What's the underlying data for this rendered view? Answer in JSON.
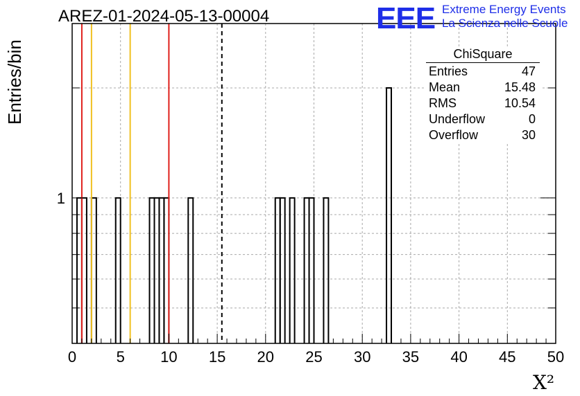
{
  "title": "AREZ-01-2024-05-13-00004",
  "logo": {
    "text": "EEE",
    "line1": "Extreme Energy Events",
    "line2": "La Scienza nelle Scuole",
    "color": "#1e2ee8"
  },
  "stats": {
    "title": "ChiSquare",
    "rows": [
      {
        "label": "Entries",
        "value": "47"
      },
      {
        "label": "Mean",
        "value": "15.48"
      },
      {
        "label": "RMS",
        "value": "10.54"
      },
      {
        "label": "Underflow",
        "value": "0"
      },
      {
        "label": "Overflow",
        "value": "30"
      }
    ]
  },
  "chart_data": {
    "type": "histogram",
    "title": "AREZ-01-2024-05-13-00004",
    "xlabel": "X²",
    "ylabel": "Entries/bin",
    "xlim": [
      0,
      50
    ],
    "ylim_log": [
      0.4,
      3
    ],
    "yscale": "log",
    "grid": true,
    "x_ticks": [
      "0",
      "5",
      "10",
      "15",
      "20",
      "25",
      "30",
      "35",
      "40",
      "45",
      "50"
    ],
    "y_tick_labels": [
      "1"
    ],
    "bin_width": 0.5,
    "bins": [
      {
        "x": 0.5,
        "count": 1
      },
      {
        "x": 1.0,
        "count": 1
      },
      {
        "x": 2.0,
        "count": 1
      },
      {
        "x": 4.5,
        "count": 1
      },
      {
        "x": 8.0,
        "count": 1
      },
      {
        "x": 8.5,
        "count": 1
      },
      {
        "x": 9.0,
        "count": 1
      },
      {
        "x": 9.5,
        "count": 1
      },
      {
        "x": 12.0,
        "count": 1
      },
      {
        "x": 21.0,
        "count": 1
      },
      {
        "x": 21.5,
        "count": 1
      },
      {
        "x": 22.5,
        "count": 1
      },
      {
        "x": 24.0,
        "count": 1
      },
      {
        "x": 24.5,
        "count": 1
      },
      {
        "x": 26.0,
        "count": 1
      },
      {
        "x": 32.5,
        "count": 2
      }
    ],
    "reference_lines": [
      {
        "x": 1.0,
        "color": "#e0201c",
        "style": "solid"
      },
      {
        "x": 2.0,
        "color": "#f0c020",
        "style": "solid"
      },
      {
        "x": 6.0,
        "color": "#f0c020",
        "style": "solid"
      },
      {
        "x": 10.0,
        "color": "#e0201c",
        "style": "solid"
      },
      {
        "x": 15.48,
        "color": "#000000",
        "style": "dashed"
      }
    ]
  }
}
